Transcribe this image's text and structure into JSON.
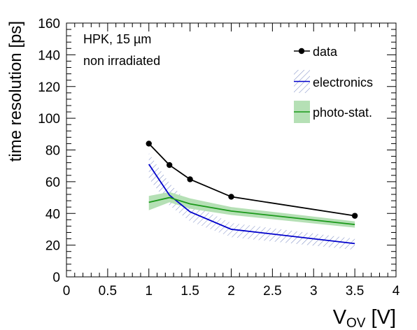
{
  "chart_data": {
    "type": "line",
    "annotation_lines": [
      "HPK, 15 µm",
      "non irradiated"
    ],
    "ylabel": "time resolution [ps]",
    "xlabel_main": "V",
    "xlabel_sub": "OV",
    "xlabel_unit": " [V]",
    "xlim": [
      0,
      4
    ],
    "ylim": [
      0,
      160
    ],
    "xticks": [
      "0",
      "0.5",
      "1",
      "1.5",
      "2",
      "2.5",
      "3",
      "3.5",
      "4"
    ],
    "yticks": [
      "0",
      "20",
      "40",
      "60",
      "80",
      "100",
      "120",
      "140",
      "160"
    ],
    "legend_position": "top-right",
    "series": [
      {
        "name": "data",
        "style": "markers+line",
        "color": "#000000",
        "x": [
          1.0,
          1.25,
          1.5,
          2.0,
          3.5
        ],
        "y": [
          84,
          70.5,
          61.5,
          50.5,
          38.5
        ]
      },
      {
        "name": "electronics",
        "style": "line+hatched-band",
        "color": "#0000cc",
        "band_color": "#5a6eb4",
        "x": [
          1.0,
          1.25,
          1.5,
          2.0,
          3.5
        ],
        "y": [
          71,
          51.5,
          41,
          30,
          21
        ],
        "y_low": [
          62,
          45,
          35,
          25,
          17
        ],
        "y_high": [
          78,
          59,
          46,
          34,
          24
        ]
      },
      {
        "name": "photo-stat.",
        "style": "line+filled-band",
        "color": "#1a991a",
        "band_color": "#b5e0b5",
        "x": [
          1.0,
          1.25,
          1.5,
          2.0,
          3.5
        ],
        "y": [
          47,
          50,
          46,
          41.5,
          33
        ],
        "y_low": [
          42,
          47,
          43,
          39,
          31
        ],
        "y_high": [
          51,
          53.5,
          49.5,
          44,
          35
        ]
      }
    ]
  }
}
